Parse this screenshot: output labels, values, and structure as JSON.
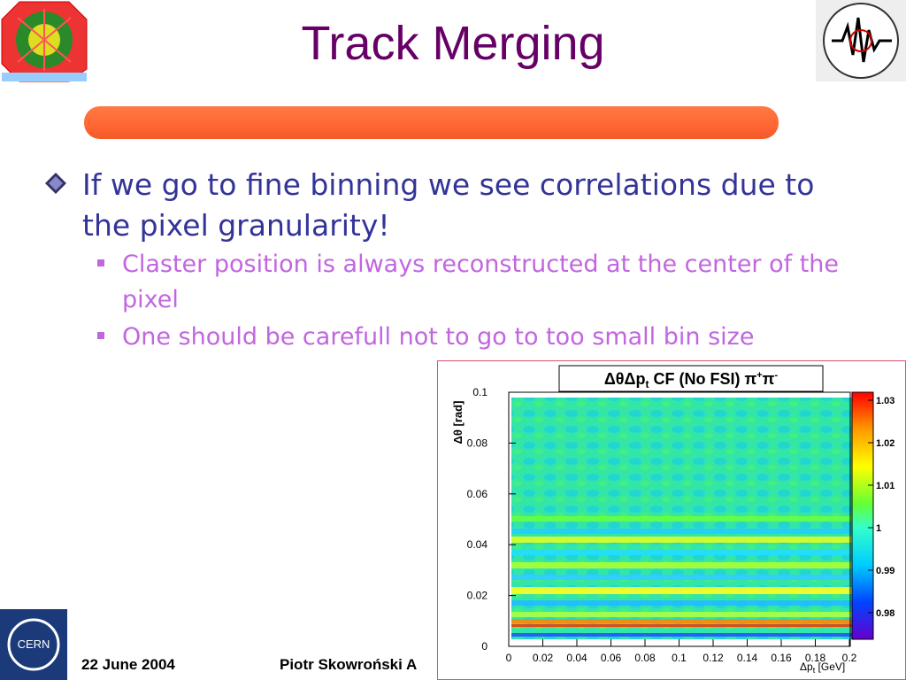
{
  "header": {
    "title": "Track Merging"
  },
  "bullets": [
    {
      "text": "If we go to fine binning we see correlations due to the pixel granularity!",
      "sub": [
        "Claster position is always reconstructed at the center of the pixel",
        "One should be carefull not to go to too small bin size"
      ]
    }
  ],
  "figure": {
    "title": {
      "main": "ΔθΔp",
      "main_sub": "t",
      "rest": " CF (No FSI) π",
      "sup1": "+",
      "pi2": "π",
      "sup2": "-"
    },
    "ylabel": "Δθ [rad]",
    "xlabel": {
      "main": "Δp",
      "sub": "t",
      "rest": " [GeV]"
    },
    "yticks": [
      "0",
      "0.02",
      "0.04",
      "0.06",
      "0.08",
      "0.1"
    ],
    "xticks": [
      "0",
      "0.02",
      "0.04",
      "0.06",
      "0.08",
      "0.1",
      "0.12",
      "0.14",
      "0.16",
      "0.18",
      "0.2"
    ],
    "zticks": [
      "0.98",
      "0.99",
      "1",
      "1.01",
      "1.02",
      "1.03"
    ]
  },
  "footer": {
    "date": "22 June 2004",
    "author": "Piotr Skowroński  A"
  }
}
